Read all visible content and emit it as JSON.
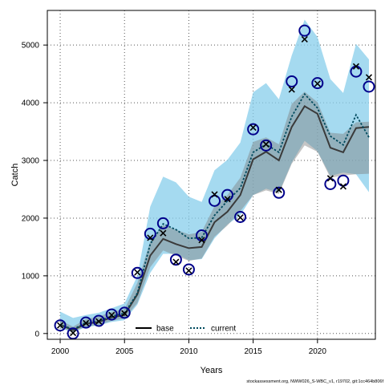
{
  "chart_data": {
    "type": "line",
    "title": "",
    "xlabel": "Years",
    "ylabel": "Catch",
    "xlim": [
      1999,
      2024.5
    ],
    "ylim": [
      -100,
      5600
    ],
    "xticks": [
      2000,
      2005,
      2010,
      2015,
      2020
    ],
    "yticks": [
      0,
      1000,
      2000,
      3000,
      4000,
      5000
    ],
    "grid": true,
    "legend_position": "bottom-center",
    "x": [
      2000,
      2001,
      2002,
      2003,
      2004,
      2005,
      2006,
      2007,
      2008,
      2009,
      2010,
      2011,
      2012,
      2013,
      2014,
      2015,
      2016,
      2017,
      2018,
      2019,
      2020,
      2021,
      2022,
      2023,
      2024
    ],
    "observed_circles": [
      140,
      0,
      190,
      220,
      330,
      360,
      1050,
      1730,
      1910,
      1280,
      1110,
      1700,
      2300,
      2400,
      2020,
      3540,
      3260,
      2440,
      4370,
      5250,
      4340,
      2590,
      2650,
      4540,
      4280
    ],
    "observed_crosses": [
      140,
      10,
      180,
      210,
      320,
      350,
      1060,
      1660,
      1740,
      1240,
      1090,
      1620,
      2410,
      2330,
      2010,
      3570,
      3280,
      2490,
      4230,
      5100,
      4330,
      2690,
      2550,
      4630,
      4440
    ],
    "series": [
      {
        "name": "base",
        "values": [
          150,
          60,
          170,
          200,
          280,
          320,
          680,
          1350,
          1640,
          1550,
          1480,
          1500,
          1930,
          2110,
          2400,
          3020,
          3150,
          3000,
          3580,
          3940,
          3810,
          3220,
          3140,
          3560,
          3580
        ],
        "lower": [
          100,
          30,
          120,
          150,
          220,
          260,
          530,
          1150,
          1440,
          1350,
          1260,
          1300,
          1680,
          1870,
          2120,
          2400,
          2480,
          2420,
          2940,
          3260,
          3150,
          2700,
          2740,
          2760,
          2770
        ],
        "upper": [
          230,
          120,
          250,
          290,
          380,
          420,
          880,
          1600,
          1880,
          1800,
          1720,
          1760,
          2210,
          2400,
          2700,
          3320,
          3400,
          3280,
          3980,
          4190,
          4010,
          3480,
          3460,
          3660,
          3670
        ],
        "color": "#7f7f7f"
      },
      {
        "name": "current",
        "values": [
          160,
          70,
          190,
          220,
          300,
          350,
          700,
          1550,
          1900,
          1800,
          1650,
          1660,
          2050,
          2300,
          2520,
          3140,
          3280,
          3140,
          3760,
          4150,
          3910,
          3420,
          3270,
          3790,
          3400
        ],
        "lower": [
          90,
          20,
          110,
          140,
          200,
          230,
          500,
          1050,
          1380,
          1380,
          1270,
          1290,
          1650,
          1890,
          2050,
          2400,
          2510,
          2440,
          2960,
          3340,
          3160,
          2730,
          2790,
          2760,
          2450
        ],
        "upper": [
          380,
          270,
          320,
          360,
          440,
          520,
          1000,
          2200,
          2720,
          2620,
          2370,
          2280,
          2830,
          3010,
          3310,
          4180,
          4340,
          4060,
          4820,
          5440,
          5140,
          4410,
          4170,
          5020,
          4750
        ],
        "color": "#1f6f8b"
      }
    ],
    "colors": {
      "current_band": "#87cdeb",
      "base_band": "#7f7f7f",
      "marker": "#00008b",
      "base_line": "#000000",
      "current_line": "#004a5e"
    },
    "credit": "stockassessment.org, NWW026_S-WBC_v1, r19702, git:1cc464b806f"
  }
}
